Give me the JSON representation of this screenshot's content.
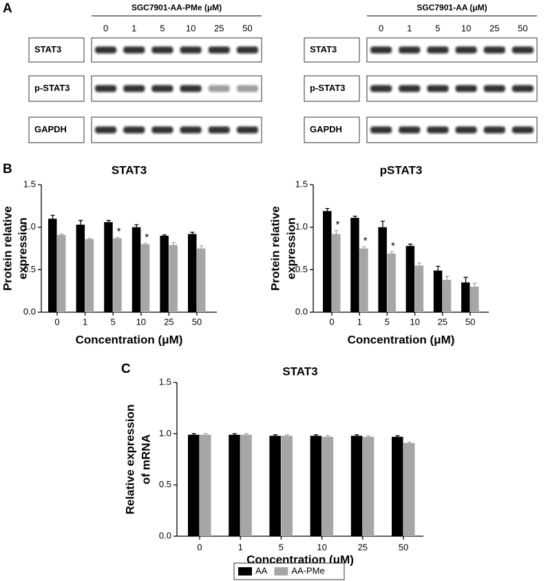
{
  "panels": {
    "a": "A",
    "b": "B",
    "c": "C"
  },
  "blots": [
    {
      "title": "SGC7901-AA-PMe (μM)",
      "lanes": [
        "0",
        "1",
        "5",
        "10",
        "25",
        "50"
      ],
      "rows": [
        "STAT3",
        "p-STAT3",
        "GAPDH"
      ]
    },
    {
      "title": "SGC7901-AA (μM)",
      "lanes": [
        "0",
        "1",
        "5",
        "10",
        "25",
        "50"
      ],
      "rows": [
        "STAT3",
        "p-STAT3",
        "GAPDH"
      ]
    }
  ],
  "chart_data": [
    {
      "type": "bar",
      "title": "STAT3",
      "ylabel": [
        "Protein relative",
        "expression"
      ],
      "xlabel": "Concentration (μM)",
      "categories": [
        "0",
        "1",
        "5",
        "10",
        "25",
        "50"
      ],
      "series": [
        {
          "color": "#000000",
          "values": [
            1.1,
            1.03,
            1.06,
            1.0,
            0.9,
            0.92
          ],
          "errors": [
            0.04,
            0.05,
            0.02,
            0.03,
            0.01,
            0.02
          ]
        },
        {
          "color": "#a6a6a6",
          "values": [
            0.91,
            0.86,
            0.87,
            0.8,
            0.79,
            0.75
          ],
          "errors": [
            0.01,
            0.01,
            0.01,
            0.01,
            0.03,
            0.03
          ],
          "labels": [
            null,
            null,
            "*",
            "*",
            null,
            null
          ]
        }
      ],
      "ylim": [
        0,
        1.5
      ],
      "yticks": [
        {
          "value": 0,
          "label": "0.0"
        },
        0.5,
        {
          "value": 1,
          "label": "1.0"
        },
        1.5
      ]
    },
    {
      "type": "bar",
      "title": "pSTAT3",
      "ylabel": [
        "Protein relative",
        "expression"
      ],
      "xlabel": "Concentration (μM)",
      "categories": [
        "0",
        "1",
        "5",
        "10",
        "25",
        "50"
      ],
      "series": [
        {
          "color": "#000000",
          "values": [
            1.19,
            1.11,
            1.0,
            0.78,
            0.49,
            0.35
          ],
          "errors": [
            0.03,
            0.02,
            0.07,
            0.02,
            0.05,
            0.06
          ]
        },
        {
          "color": "#a6a6a6",
          "values": [
            0.92,
            0.75,
            0.69,
            0.55,
            0.38,
            0.3
          ],
          "errors": [
            0.04,
            0.02,
            0.02,
            0.03,
            0.04,
            0.04
          ],
          "labels": [
            "*",
            "*",
            "*",
            null,
            null,
            null
          ]
        }
      ],
      "ylim": [
        0,
        1.5
      ],
      "yticks": [
        {
          "value": 0,
          "label": "0.0"
        },
        0.5,
        {
          "value": 1,
          "label": "1.0"
        },
        1.5
      ]
    },
    {
      "type": "bar",
      "title": "STAT3",
      "ylabel": [
        "Relative expression",
        "of mRNA"
      ],
      "xlabel": "Concentration (μM)",
      "categories": [
        "0",
        "1",
        "5",
        "10",
        "25",
        "50"
      ],
      "series": [
        {
          "name": "AA",
          "color": "#000000",
          "values": [
            0.99,
            0.99,
            0.98,
            0.98,
            0.98,
            0.97
          ],
          "errors": [
            0.01,
            0.01,
            0.01,
            0.01,
            0.01,
            0.01
          ]
        },
        {
          "name": "AA-PMe",
          "color": "#a6a6a6",
          "values": [
            0.99,
            0.99,
            0.98,
            0.97,
            0.97,
            0.91
          ],
          "errors": [
            0.01,
            0.01,
            0.01,
            0.01,
            0.01,
            0.01
          ]
        }
      ],
      "ylim": [
        0,
        1.5
      ],
      "yticks": [
        {
          "value": 0,
          "label": "0.0"
        },
        0.5,
        {
          "value": 1,
          "label": "1.0"
        },
        1.5
      ],
      "legend": "bottom"
    }
  ]
}
